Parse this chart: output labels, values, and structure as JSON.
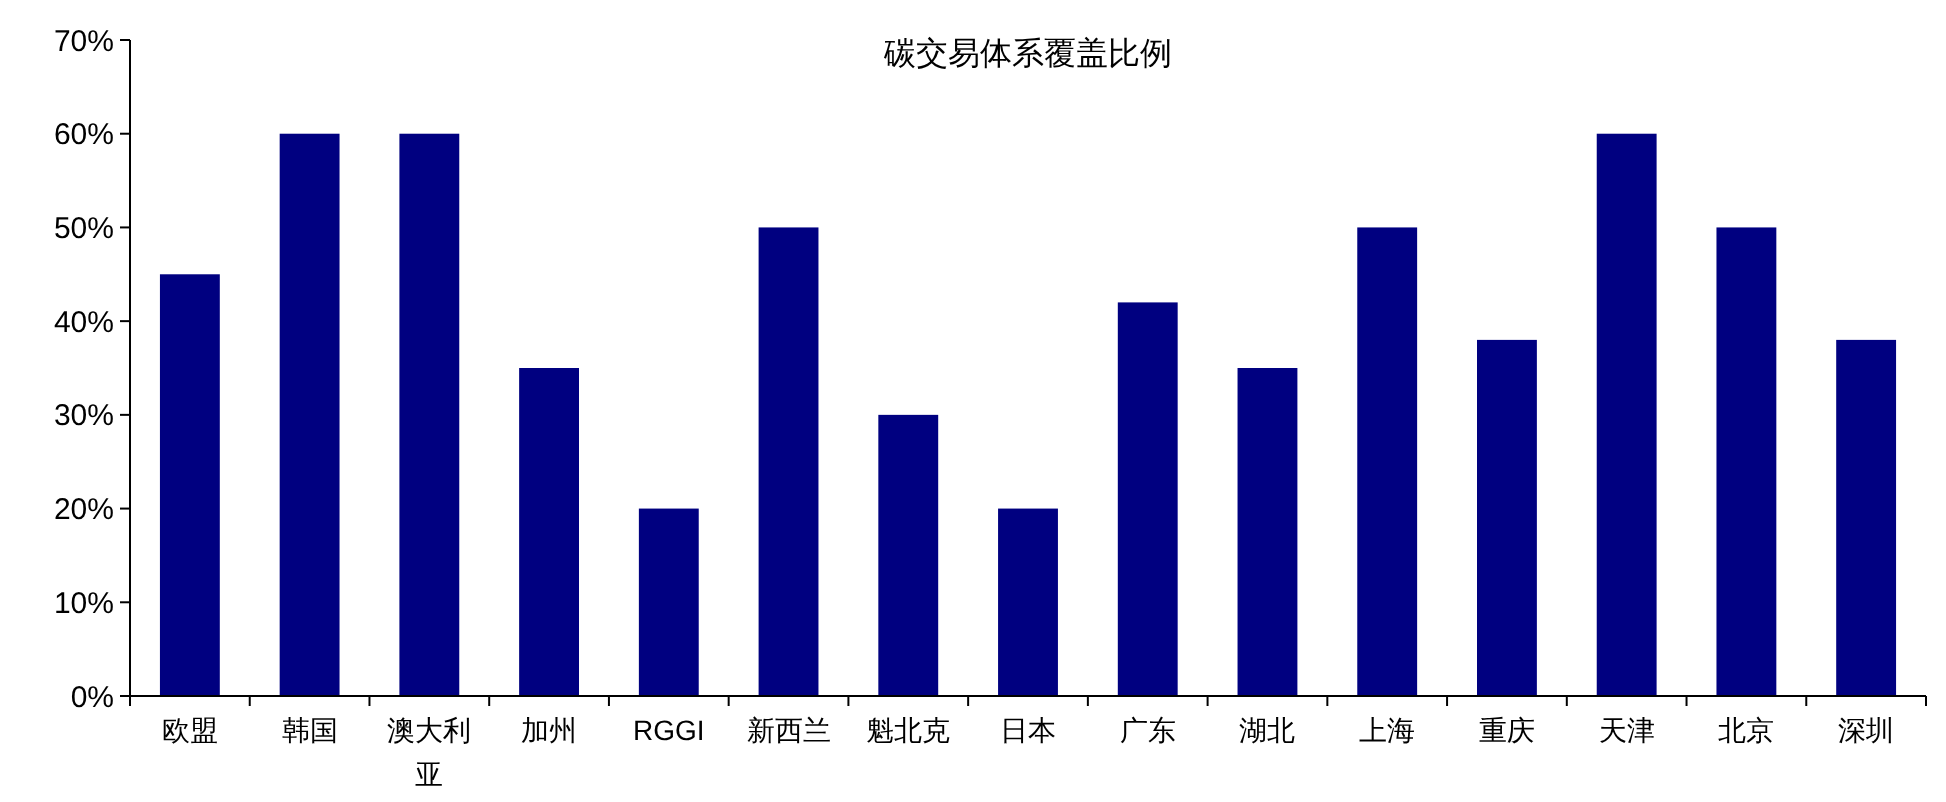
{
  "chart_data": {
    "type": "bar",
    "title": "碳交易体系覆盖比例",
    "categories": [
      "欧盟",
      "韩国",
      "澳大利亚",
      "加州",
      "RGGI",
      "新西兰",
      "魁北克",
      "日本",
      "广东",
      "湖北",
      "上海",
      "重庆",
      "天津",
      "北京",
      "深圳"
    ],
    "values": [
      45,
      60,
      60,
      35,
      20,
      50,
      30,
      20,
      42,
      35,
      50,
      38,
      60,
      50,
      38
    ],
    "color": "#000080",
    "ylim": [
      0,
      70
    ],
    "yticks": [
      {
        "value": 0,
        "label": "0%"
      },
      {
        "value": 10,
        "label": "10%"
      },
      {
        "value": 20,
        "label": "20%"
      },
      {
        "value": 30,
        "label": "30%"
      },
      {
        "value": 40,
        "label": "40%"
      },
      {
        "value": 50,
        "label": "50%"
      },
      {
        "value": 60,
        "label": "60%"
      },
      {
        "value": 70,
        "label": "70%"
      }
    ],
    "grid": false
  }
}
